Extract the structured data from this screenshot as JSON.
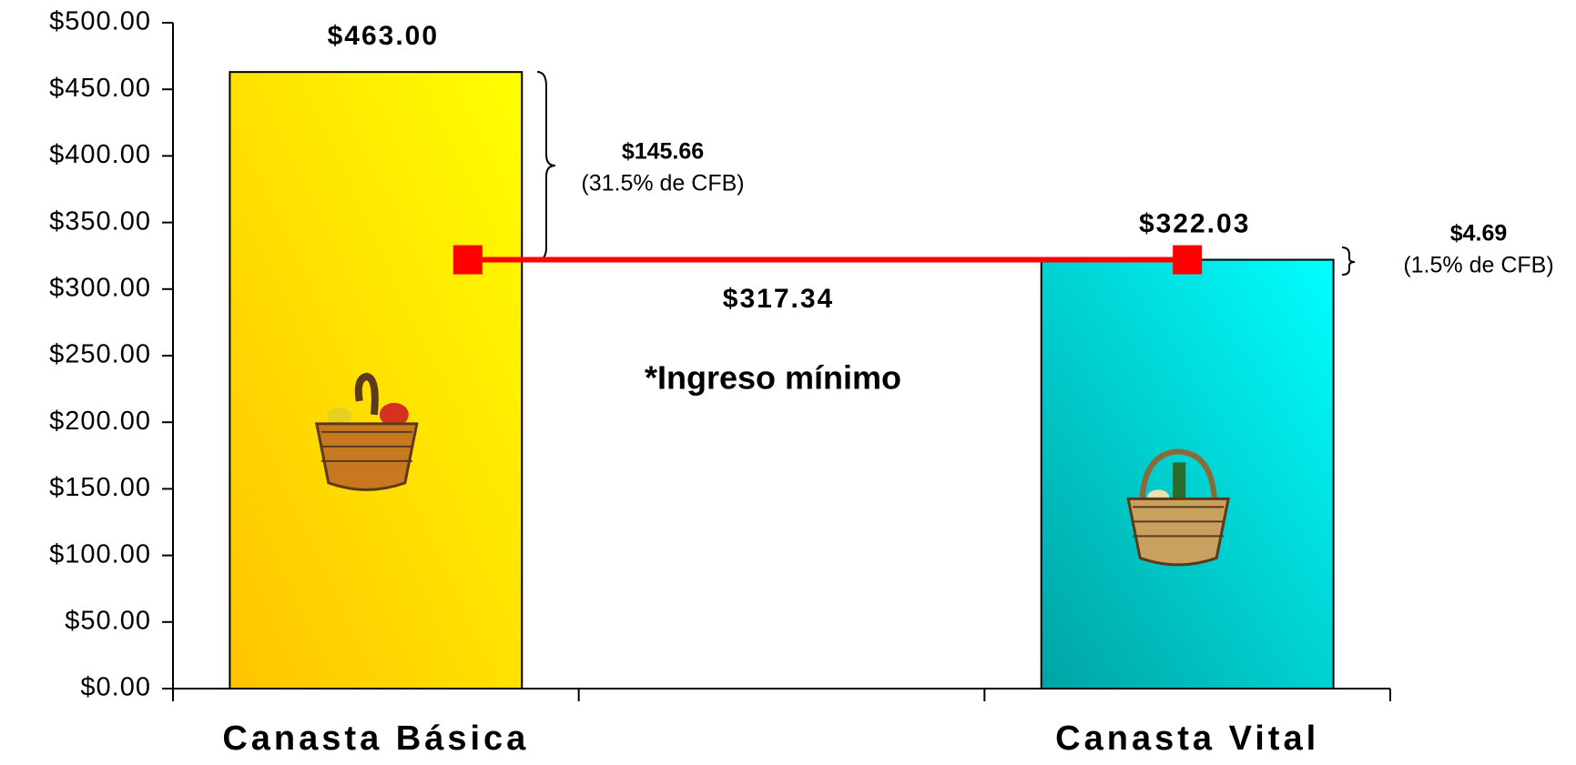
{
  "chart_data": {
    "type": "bar",
    "categories": [
      "Canasta Básica",
      null,
      "Canasta Vital"
    ],
    "values": [
      463.0,
      null,
      322.03
    ],
    "value_labels": [
      "$463.00",
      null,
      "$322.03"
    ],
    "bar_gradients": [
      [
        "#ffc400",
        "#ffff00"
      ],
      null,
      [
        "#00a4a4",
        "#00ffff"
      ]
    ],
    "line": {
      "values": [
        322.03,
        null,
        322.03
      ],
      "color": "#ff0000"
    },
    "ylim": [
      0,
      500
    ],
    "yticks": [
      {
        "value": 0,
        "label": "$0.00"
      },
      {
        "value": 50,
        "label": "$50.00"
      },
      {
        "value": 100,
        "label": "$100.00"
      },
      {
        "value": 150,
        "label": "$150.00"
      },
      {
        "value": 200,
        "label": "$200.00"
      },
      {
        "value": 250,
        "label": "$250.00"
      },
      {
        "value": 300,
        "label": "$300.00"
      },
      {
        "value": 350,
        "label": "$350.00"
      },
      {
        "value": 400,
        "label": "$400.00"
      },
      {
        "value": 450,
        "label": "$450.00"
      },
      {
        "value": 500,
        "label": "$500.00"
      }
    ],
    "grid": false,
    "annotations": {
      "difference_basica": "$145.66",
      "difference_basica_pct": "(31.5% de CFB)",
      "difference_vital": "$4.69",
      "difference_vital_pct": "(1.5% de CFB)",
      "minimum_income": "$317.34",
      "minimum_income_label": "*Ingreso mínimo"
    }
  }
}
